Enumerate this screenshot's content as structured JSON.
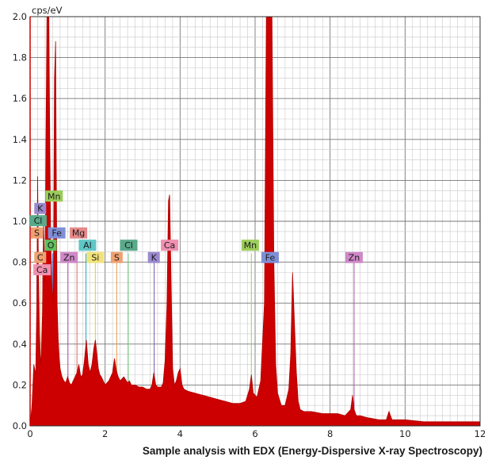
{
  "chart_data": {
    "type": "area",
    "title": "",
    "ylabel": "cps/eV",
    "xlabel": "",
    "caption": "Sample analysis with EDX (Energy-Dispersive X-ray Spectroscopy)",
    "xlim": [
      0,
      12
    ],
    "ylim": [
      0,
      2.0
    ],
    "x_ticks": [
      "0",
      "2",
      "4",
      "6",
      "8",
      "10",
      "12"
    ],
    "y_ticks": [
      "0.0",
      "0.2",
      "0.4",
      "0.6",
      "0.8",
      "1.0",
      "1.2",
      "1.4",
      "1.6",
      "1.8",
      "2.0"
    ],
    "grid": true,
    "fill_color": "#cc0000",
    "series": [
      {
        "x": [
          0.0,
          0.05,
          0.1,
          0.15,
          0.18,
          0.2,
          0.22,
          0.25,
          0.28,
          0.3,
          0.33,
          0.36,
          0.4,
          0.42,
          0.45,
          0.48,
          0.5,
          0.52,
          0.55,
          0.58,
          0.6,
          0.62,
          0.65,
          0.68,
          0.7,
          0.72,
          0.75,
          0.78,
          0.8,
          0.85,
          0.9,
          0.95,
          1.0,
          1.05,
          1.1,
          1.15,
          1.2,
          1.25,
          1.3,
          1.35,
          1.4,
          1.45,
          1.5,
          1.55,
          1.6,
          1.65,
          1.7,
          1.74,
          1.78,
          1.82,
          1.86,
          1.9,
          2.0,
          2.1,
          2.2,
          2.25,
          2.3,
          2.35,
          2.4,
          2.5,
          2.6,
          2.65,
          2.7,
          2.8,
          2.9,
          3.0,
          3.1,
          3.2,
          3.25,
          3.3,
          3.35,
          3.4,
          3.5,
          3.55,
          3.6,
          3.65,
          3.69,
          3.72,
          3.76,
          3.8,
          3.85,
          3.9,
          3.95,
          4.0,
          4.05,
          4.1,
          4.2,
          4.4,
          4.6,
          4.8,
          5.0,
          5.2,
          5.4,
          5.6,
          5.75,
          5.85,
          5.9,
          5.95,
          6.05,
          6.15,
          6.25,
          6.3,
          6.35,
          6.4,
          6.45,
          6.5,
          6.55,
          6.6,
          6.7,
          6.8,
          6.9,
          6.95,
          7.0,
          7.05,
          7.1,
          7.15,
          7.2,
          7.3,
          7.5,
          7.8,
          8.0,
          8.2,
          8.4,
          8.55,
          8.6,
          8.64,
          8.7,
          8.8,
          9.0,
          9.3,
          9.5,
          9.57,
          9.65,
          9.8,
          10.0,
          10.5,
          11.0,
          11.5,
          12.0
        ],
        "y": [
          0.0,
          0.1,
          0.3,
          0.25,
          0.6,
          1.22,
          0.8,
          0.45,
          0.3,
          0.35,
          0.55,
          1.0,
          0.7,
          1.35,
          2.0,
          2.0,
          2.0,
          1.5,
          0.9,
          0.7,
          0.65,
          0.6,
          1.7,
          1.88,
          1.2,
          0.6,
          0.42,
          0.32,
          0.28,
          0.24,
          0.22,
          0.21,
          0.24,
          0.21,
          0.2,
          0.22,
          0.24,
          0.26,
          0.3,
          0.24,
          0.25,
          0.32,
          0.42,
          0.3,
          0.26,
          0.3,
          0.38,
          0.42,
          0.35,
          0.28,
          0.25,
          0.24,
          0.2,
          0.22,
          0.26,
          0.33,
          0.27,
          0.24,
          0.22,
          0.24,
          0.21,
          0.22,
          0.2,
          0.2,
          0.19,
          0.19,
          0.18,
          0.18,
          0.2,
          0.26,
          0.2,
          0.19,
          0.19,
          0.21,
          0.32,
          0.6,
          1.1,
          1.13,
          0.7,
          0.28,
          0.2,
          0.22,
          0.26,
          0.28,
          0.2,
          0.18,
          0.17,
          0.16,
          0.15,
          0.14,
          0.13,
          0.12,
          0.11,
          0.11,
          0.12,
          0.18,
          0.25,
          0.16,
          0.14,
          0.22,
          0.6,
          2.0,
          2.0,
          2.0,
          2.0,
          0.8,
          0.3,
          0.16,
          0.1,
          0.1,
          0.18,
          0.35,
          0.75,
          0.5,
          0.26,
          0.12,
          0.08,
          0.07,
          0.07,
          0.06,
          0.06,
          0.06,
          0.05,
          0.08,
          0.15,
          0.08,
          0.05,
          0.05,
          0.04,
          0.03,
          0.03,
          0.07,
          0.03,
          0.03,
          0.03,
          0.02,
          0.02,
          0.02,
          0.02
        ]
      }
    ],
    "element_lines": [
      {
        "x": 0.18,
        "color": "#8888cc"
      },
      {
        "x": 0.28,
        "color": "#e6c8a0"
      },
      {
        "x": 0.34,
        "color": "#cc4455"
      },
      {
        "x": 0.4,
        "color": "#cc8800"
      },
      {
        "x": 0.52,
        "color": "#22aa33"
      },
      {
        "x": 0.6,
        "color": "#5566bb"
      },
      {
        "x": 0.64,
        "color": "#88bb44"
      },
      {
        "x": 0.7,
        "color": "#cc6688"
      },
      {
        "x": 1.01,
        "color": "#aa55aa"
      },
      {
        "x": 1.25,
        "color": "#dd6666"
      },
      {
        "x": 1.49,
        "color": "#22aabb"
      },
      {
        "x": 1.74,
        "color": "#f0d000"
      },
      {
        "x": 2.31,
        "color": "#e89850"
      },
      {
        "x": 2.62,
        "color": "#77cc88"
      },
      {
        "x": 3.31,
        "color": "#7755aa"
      },
      {
        "x": 3.69,
        "color": "#e06080"
      },
      {
        "x": 5.9,
        "color": "#99cc66"
      },
      {
        "x": 6.4,
        "color": "#5566bb"
      },
      {
        "x": 8.64,
        "color": "#aa55aa"
      }
    ],
    "annotations": [
      {
        "text": "Mn",
        "x": 0.64,
        "y": 1.123,
        "color": "#9ccc5a"
      },
      {
        "text": "K",
        "x": 0.27,
        "y": 1.063,
        "color": "#9b89cf"
      },
      {
        "text": "Cl",
        "x": 0.21,
        "y": 1.003,
        "color": "#5aaa8a"
      },
      {
        "text": "S",
        "x": 0.18,
        "y": 0.943,
        "color": "#f0a070"
      },
      {
        "text": "Fe",
        "x": 0.71,
        "y": 0.943,
        "color": "#7f8fd6"
      },
      {
        "text": "Mg",
        "x": 1.29,
        "y": 0.943,
        "color": "#e58a8a"
      },
      {
        "text": "O",
        "x": 0.55,
        "y": 0.883,
        "color": "#5fbf5f"
      },
      {
        "text": "Al",
        "x": 1.53,
        "y": 0.883,
        "color": "#5fc6c6"
      },
      {
        "text": "Cl",
        "x": 2.63,
        "y": 0.883,
        "color": "#5aaa8a"
      },
      {
        "text": "Ca",
        "x": 3.72,
        "y": 0.883,
        "color": "#f090b0"
      },
      {
        "text": "Mn",
        "x": 5.87,
        "y": 0.883,
        "color": "#9ccc5a"
      },
      {
        "text": "C",
        "x": 0.27,
        "y": 0.823,
        "color": "#f0a070"
      },
      {
        "text": "Zn",
        "x": 1.04,
        "y": 0.823,
        "color": "#cf88c8"
      },
      {
        "text": "Si",
        "x": 1.74,
        "y": 0.823,
        "color": "#f2e27a"
      },
      {
        "text": "S",
        "x": 2.31,
        "y": 0.823,
        "color": "#f0a070"
      },
      {
        "text": "K",
        "x": 3.3,
        "y": 0.823,
        "color": "#9b89cf"
      },
      {
        "text": "Fe",
        "x": 6.4,
        "y": 0.823,
        "color": "#7f8fd6"
      },
      {
        "text": "Zn",
        "x": 8.64,
        "y": 0.823,
        "color": "#cf88c8"
      },
      {
        "text": "Ca",
        "x": 0.32,
        "y": 0.763,
        "color": "#f090b0"
      }
    ]
  }
}
